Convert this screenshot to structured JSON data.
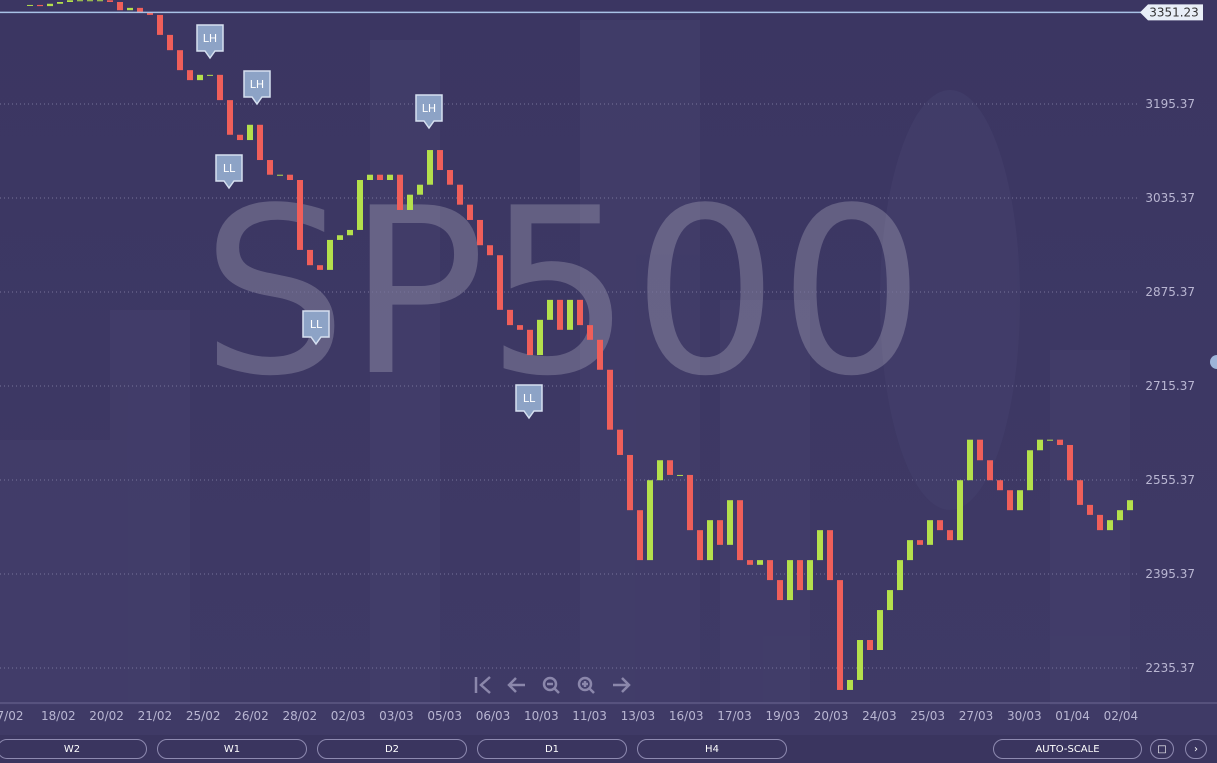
{
  "chart_data": {
    "type": "candlestick",
    "watermark": "SP500",
    "x_axis_labels": [
      "7/02",
      "18/02",
      "20/02",
      "21/02",
      "25/02",
      "26/02",
      "28/02",
      "02/03",
      "03/03",
      "05/03",
      "06/03",
      "10/03",
      "11/03",
      "13/03",
      "16/03",
      "17/03",
      "19/03",
      "20/03",
      "24/03",
      "25/03",
      "27/03",
      "30/03",
      "01/04",
      "02/04"
    ],
    "closes": [
      3364,
      3362,
      3366,
      3369,
      3372,
      3372,
      3372,
      3372,
      3369,
      3355,
      3359,
      3352,
      3347,
      3313,
      3287,
      3253,
      3236,
      3245,
      3245,
      3202,
      3143,
      3134,
      3160,
      3100,
      3075,
      3075,
      3066,
      2947,
      2921,
      2913,
      2964,
      2972,
      2981,
      3066,
      3075,
      3066,
      3075,
      3015,
      3041,
      3058,
      3117,
      3083,
      3058,
      3024,
      2998,
      2955,
      2938,
      2845,
      2819,
      2811,
      2768,
      2828,
      2862,
      2811,
      2862,
      2819,
      2794,
      2743,
      2641,
      2598,
      2504,
      2419,
      2555,
      2589,
      2564,
      2564,
      2470,
      2419,
      2487,
      2445,
      2521,
      2419,
      2411,
      2419,
      2385,
      2351,
      2419,
      2368,
      2419,
      2470,
      2385,
      2198,
      2215,
      2283,
      2266,
      2334,
      2368,
      2419,
      2453,
      2445,
      2487,
      2470,
      2453,
      2555,
      2624,
      2589,
      2555,
      2538,
      2504,
      2538,
      2606,
      2624,
      2624,
      2615,
      2555,
      2513,
      2496,
      2470,
      2487,
      2504,
      2521
    ],
    "up_color": "#b4e04c",
    "down_color": "#ef5f5a",
    "ylim": [
      2175.8,
      3372.4
    ],
    "yticks": [
      2235.37,
      2395.37,
      2555.37,
      2715.37,
      2875.37,
      3035.37,
      3195.37
    ],
    "current_price": 3351.23,
    "annotations": [
      "LH",
      "LH",
      "LH",
      "LL",
      "LL",
      "LL"
    ]
  },
  "controls": {
    "timeframes": [
      "W2",
      "W1",
      "D2",
      "D1",
      "H4"
    ],
    "auto_scale": "AUTO-SCALE"
  }
}
